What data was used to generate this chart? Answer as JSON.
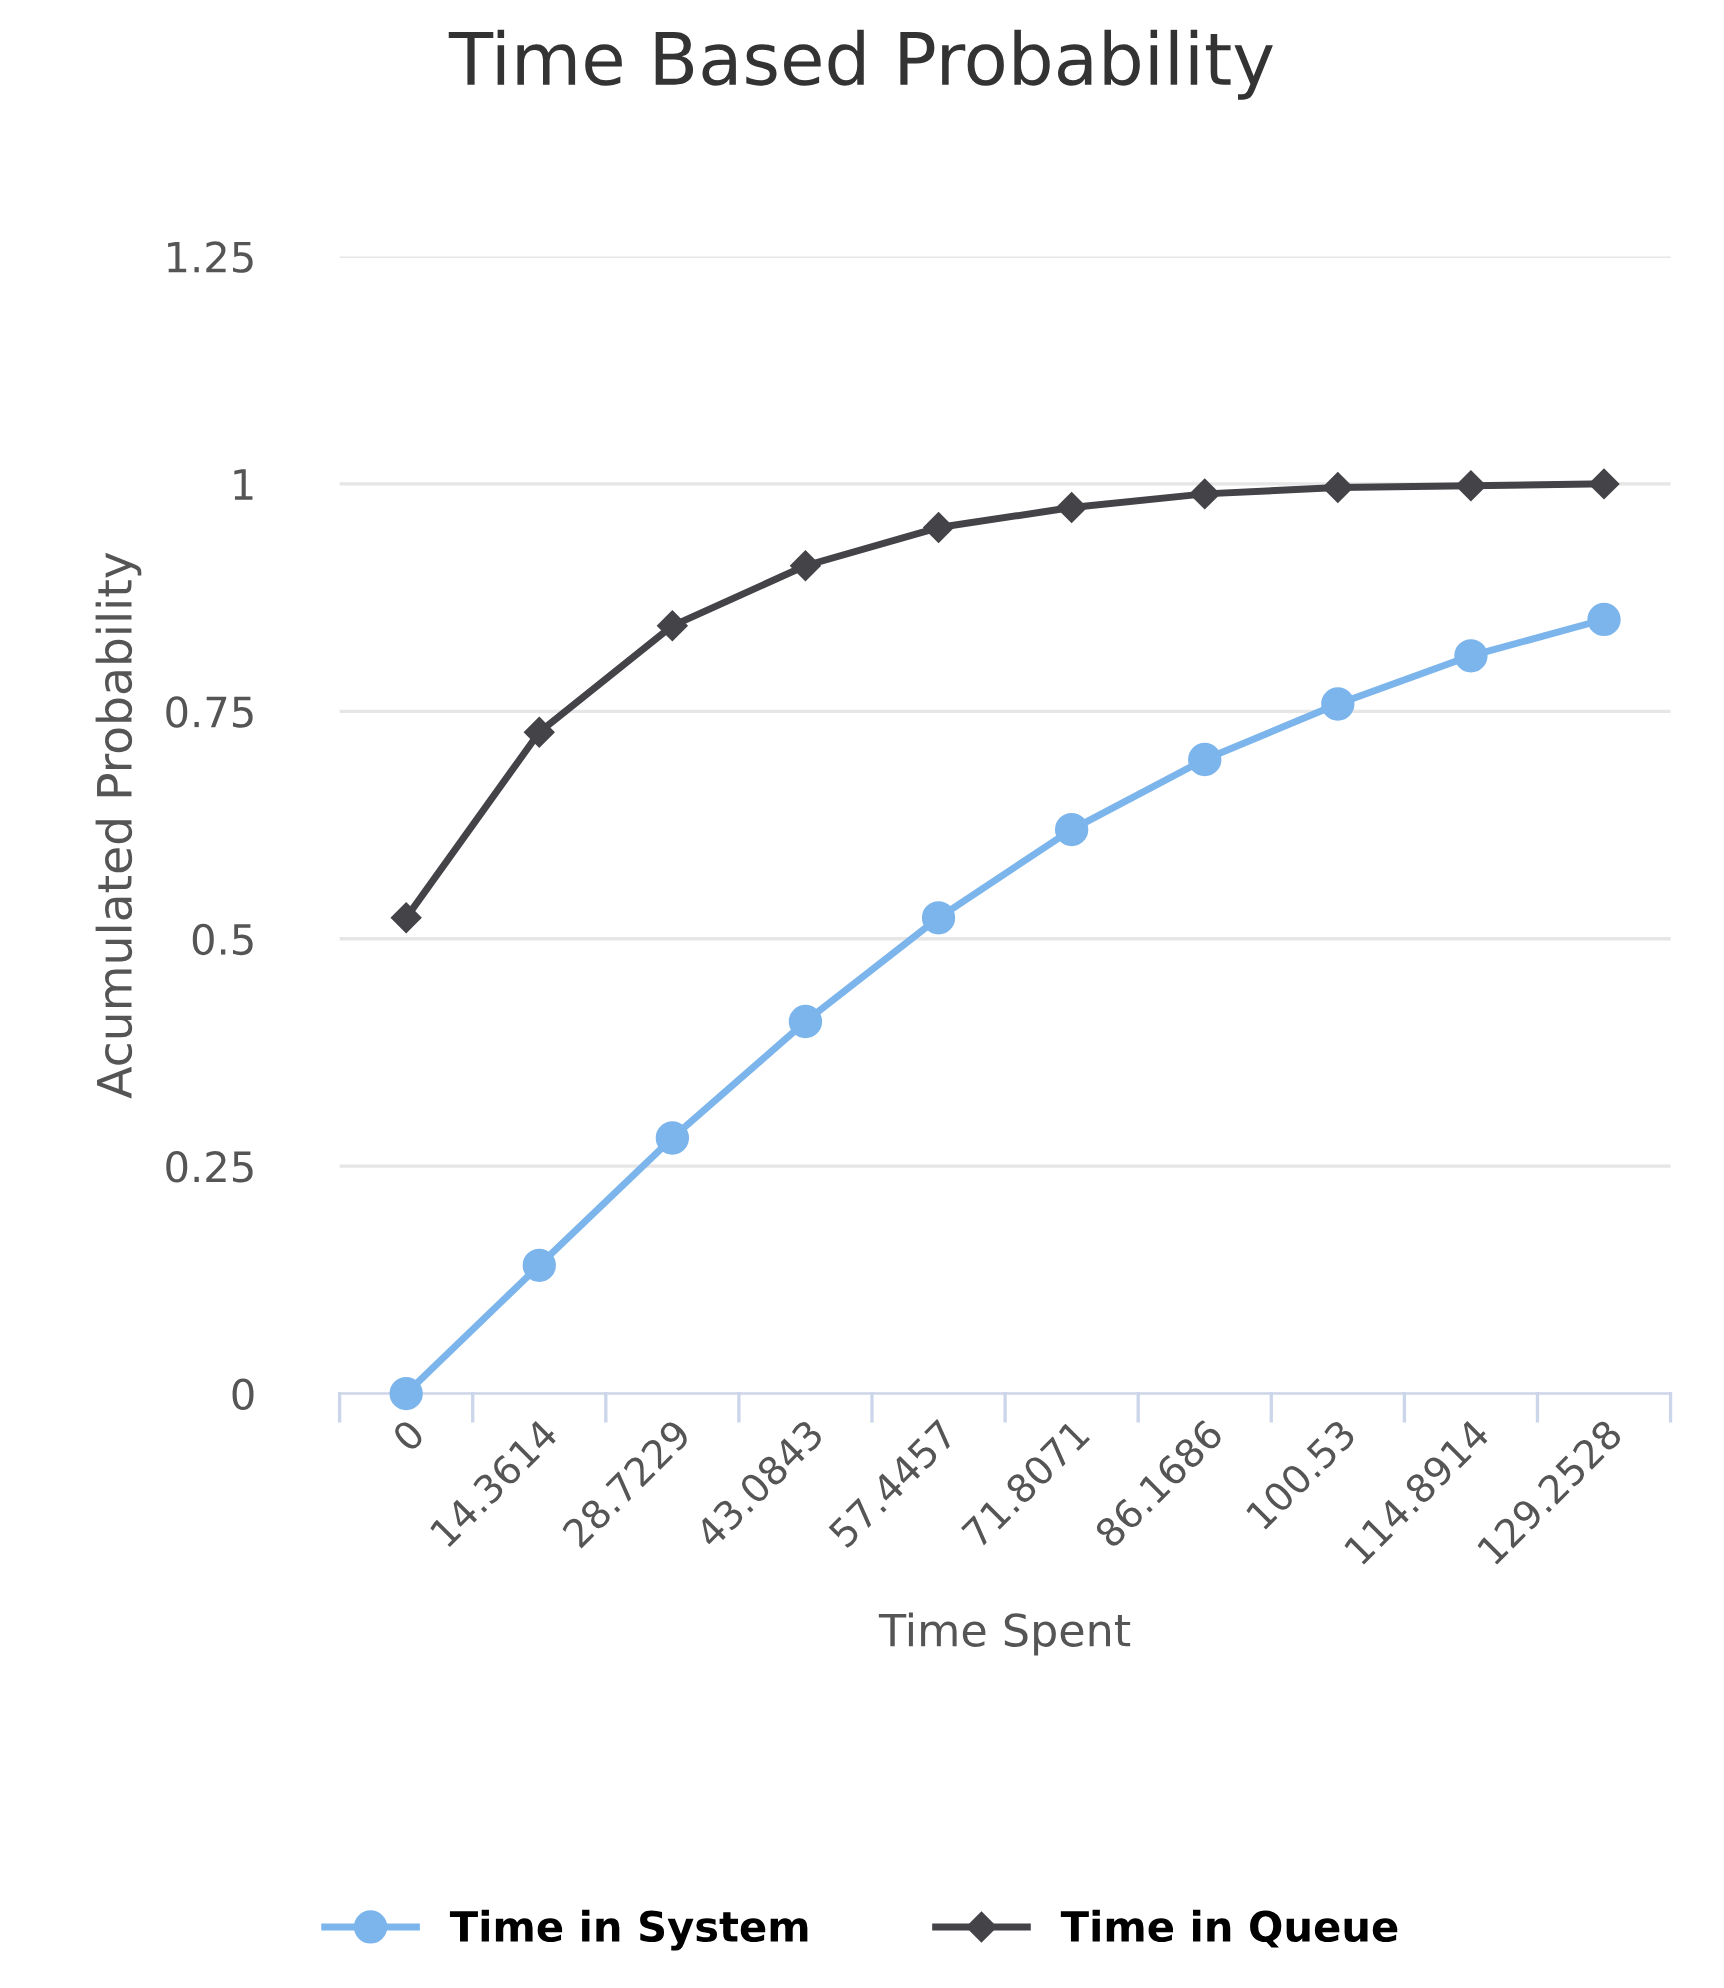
{
  "chart_data": {
    "type": "line",
    "title": "Time Based Probability",
    "xlabel": "Time Spent",
    "ylabel": "Acumulated Probability",
    "categories": [
      "0",
      "14.3614",
      "28.7229",
      "43.0843",
      "57.4457",
      "71.8071",
      "86.1686",
      "100.53",
      "114.8914",
      "129.2528"
    ],
    "series": [
      {
        "name": "Time in System",
        "color": "#7cb5ec",
        "marker": "circle",
        "values": [
          0,
          0.141,
          0.281,
          0.409,
          0.523,
          0.62,
          0.697,
          0.758,
          0.811,
          0.851
        ]
      },
      {
        "name": "Time in Queue",
        "color": "#434348",
        "marker": "diamond",
        "values": [
          0.523,
          0.727,
          0.844,
          0.91,
          0.952,
          0.974,
          0.989,
          0.996,
          0.998,
          1.0
        ]
      }
    ],
    "ylim": [
      0,
      1.25
    ],
    "yticks": [
      0,
      0.25,
      0.5,
      0.75,
      1,
      1.25
    ],
    "grid": "y",
    "legend": "bottom",
    "line_style": "solid"
  }
}
